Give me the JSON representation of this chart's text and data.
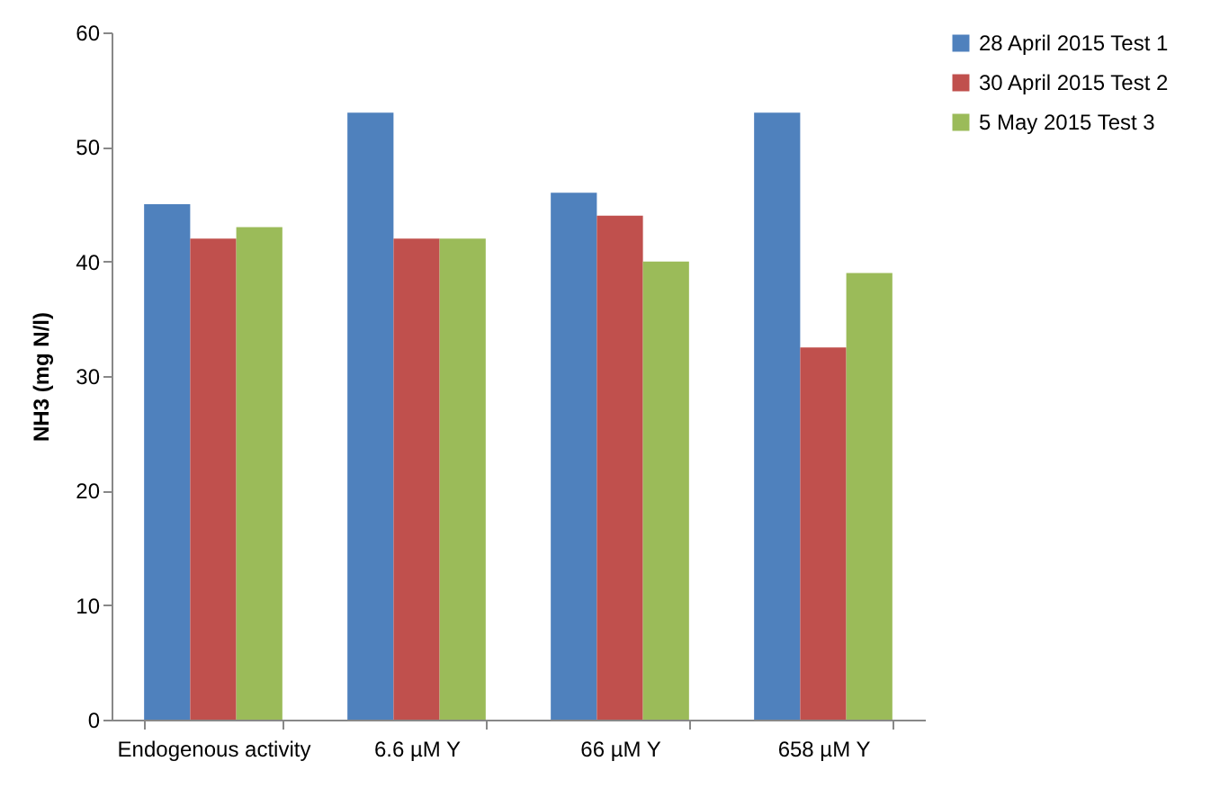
{
  "chart_data": {
    "type": "bar",
    "ylabel": "NH3 (mg N/l)",
    "categories": [
      "Endogenous activity",
      "6.6 µM Y",
      "66 µM Y",
      "658 µM Y"
    ],
    "series": [
      {
        "name": "28 April 2015 Test 1",
        "color": "#4f81bd",
        "values": [
          45,
          53,
          46,
          53
        ]
      },
      {
        "name": "30 April 2015 Test 2",
        "color": "#c0504d",
        "values": [
          42,
          42,
          44,
          32.5
        ]
      },
      {
        "name": "5 May 2015 Test 3",
        "color": "#9bbb59",
        "values": [
          43,
          42,
          40,
          39
        ]
      }
    ],
    "ylim": [
      0,
      60
    ],
    "yticks": [
      0,
      10,
      20,
      30,
      40,
      50,
      60
    ],
    "grid": false,
    "legend": "right"
  }
}
